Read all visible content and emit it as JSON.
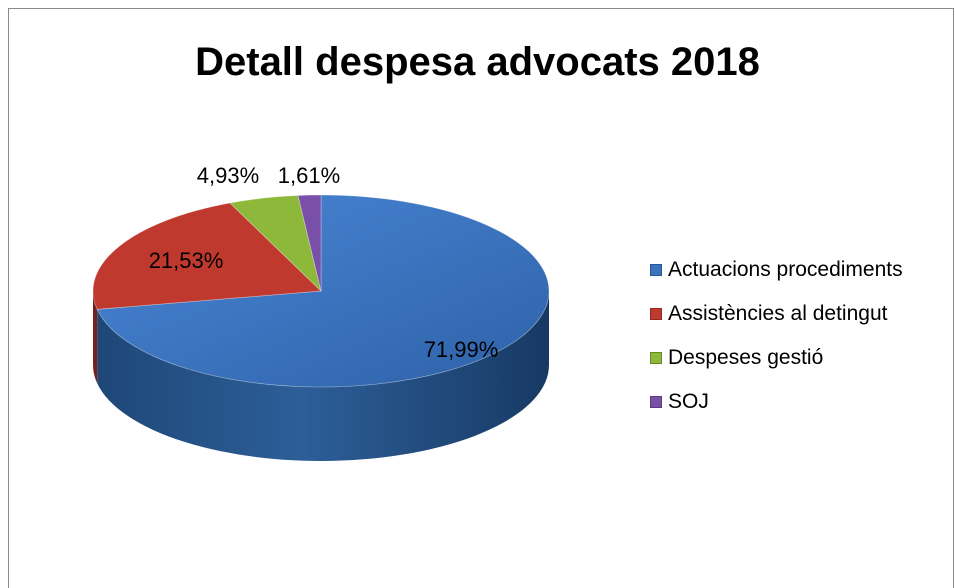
{
  "chart_data": {
    "type": "pie",
    "title": "Detall despesa advocats 2018",
    "legend_position": "right",
    "three_d": true,
    "slices": [
      {
        "label": "Actuacions procediments",
        "value": 71.99,
        "display": "71,99%",
        "color": "#3A73C0"
      },
      {
        "label": "Assistències al detingut",
        "value": 21.53,
        "display": "21,53%",
        "color": "#C0392F"
      },
      {
        "label": "Despeses gestió",
        "value": 4.93,
        "display": "4,93%",
        "color": "#8DB83A"
      },
      {
        "label": "SOJ",
        "value": 1.61,
        "display": "1,61%",
        "color": "#7A4FA8"
      }
    ]
  }
}
